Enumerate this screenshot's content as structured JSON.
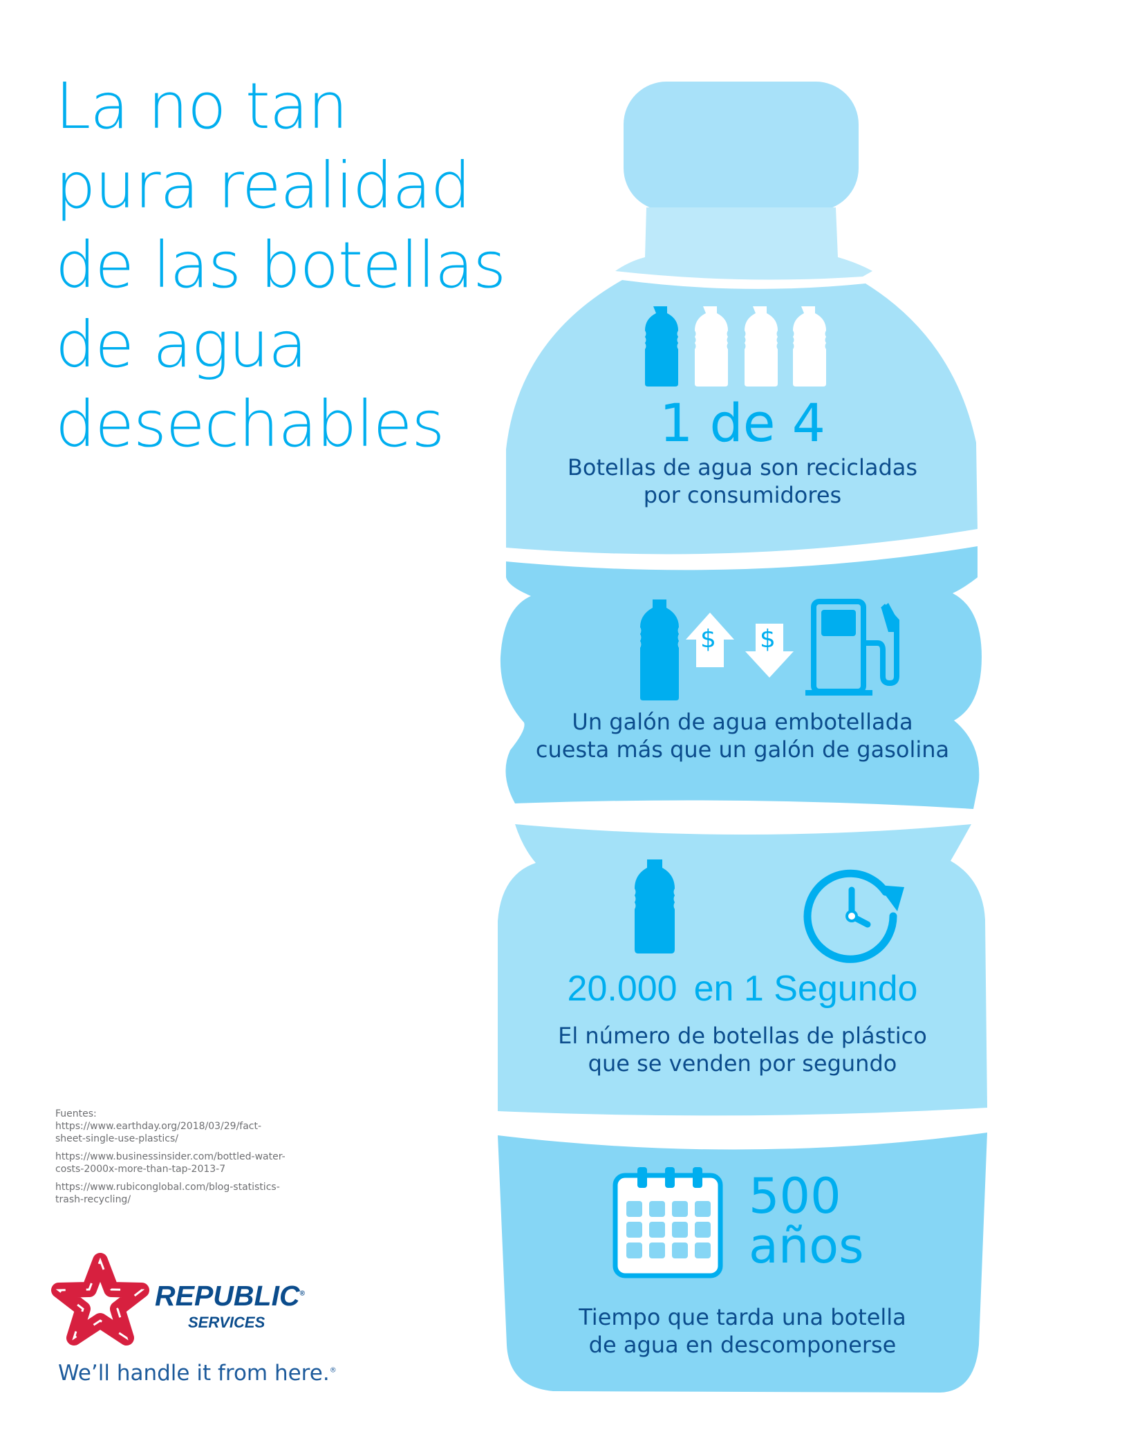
{
  "title": {
    "lines": [
      "La no tan",
      "pura realidad",
      "de las botellas",
      "de agua",
      "desechables"
    ]
  },
  "colors": {
    "accent": "#00aeef",
    "text_dark": "#0b4c8c",
    "bottle_light": "#a6e1f8",
    "bottle_mid": "#86d6f5",
    "brand_red": "#d7203f"
  },
  "sections": [
    {
      "icon": "bottles-1-of-4-icon",
      "stat": "1 de 4",
      "lines": [
        "Botellas de agua son recicladas",
        "por consumidores"
      ]
    },
    {
      "icon": "bottle-vs-gas-pump-icon",
      "dollar": "$",
      "lines": [
        "Un galón de agua embotellada",
        "cuesta más que un galón de gasolina"
      ]
    },
    {
      "icon": "bottle-and-clock-icon",
      "stat_number": "20.000",
      "stat_unit": "en 1 Segundo",
      "lines": [
        "El número de botellas de plástico",
        "que se venden por segundo"
      ]
    },
    {
      "icon": "calendar-icon",
      "stat_number": "500",
      "stat_unit": "años",
      "lines": [
        "Tiempo que tarda una botella",
        "de agua en descomponerse"
      ]
    }
  ],
  "sources": {
    "label": "Fuentes:",
    "items": [
      "https://www.earthday.org/2018/03/29/fact-sheet-single-use-plastics/",
      "https://www.businessinsider.com/bottled-water-costs-2000x-more-than-tap-2013-7",
      "https://www.rubiconglobal.com/blog-statistics-trash-recycling/"
    ]
  },
  "brand": {
    "name": "REPUBLIC",
    "sub": "SERVICES",
    "registered": "®",
    "tagline": "We’ll handle it from here."
  }
}
